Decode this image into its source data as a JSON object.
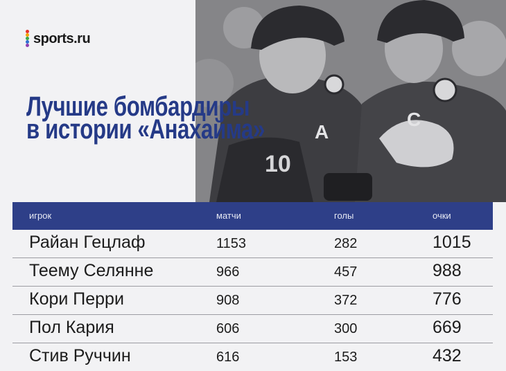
{
  "brand": {
    "name": "sports.ru",
    "dot_colors": [
      "#e6332a",
      "#f4a300",
      "#3ca849",
      "#2f6fd1",
      "#8e3fb2"
    ]
  },
  "title": {
    "line1": "Лучшие бомбардиры",
    "line2": "в истории «Анахайма»"
  },
  "table": {
    "headers": {
      "player": "игрок",
      "games": "матчи",
      "goals": "голы",
      "points": "очки"
    },
    "rows": [
      {
        "player": "Райан Гецлаф",
        "games": "1153",
        "goals": "282",
        "points": "1015"
      },
      {
        "player": "Теему Селянне",
        "games": "966",
        "goals": "457",
        "points": "988"
      },
      {
        "player": "Кори Перри",
        "games": "908",
        "goals": "372",
        "points": "776"
      },
      {
        "player": "Пол Кария",
        "games": "606",
        "goals": "300",
        "points": "669"
      },
      {
        "player": "Стив Руччин",
        "games": "616",
        "goals": "153",
        "points": "432"
      }
    ]
  },
  "photo": {
    "jersey_letters": [
      "A",
      "C"
    ],
    "jersey_number": "10"
  },
  "colors": {
    "title": "#253a87",
    "header_bg": "#2e3f88",
    "background": "#f2f2f4"
  }
}
